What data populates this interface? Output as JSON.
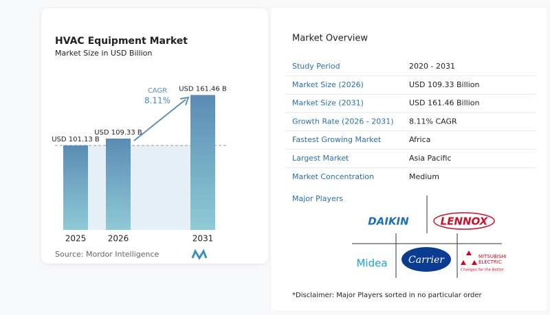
{
  "chart_data": {
    "type": "bar",
    "title": "HVAC Equipment Market",
    "subtitle": "Market Size in USD Billion",
    "categories": [
      "2025",
      "2026",
      "2031"
    ],
    "values": [
      101.13,
      109.33,
      161.46
    ],
    "value_labels": [
      "USD 101.13 B",
      "USD 109.33 B",
      "USD 161.46 B"
    ],
    "annotation": {
      "label": "CAGR",
      "value": "8.11%"
    },
    "ylim": [
      0,
      170
    ],
    "source": "Source: Mordor Intelligence"
  },
  "overview": {
    "title": "Market Overview",
    "rows": [
      [
        "Study Period",
        "2020 - 2031"
      ],
      [
        "Market Size (2026)",
        "USD 109.33 Billion"
      ],
      [
        "Market Size (2031)",
        "USD 161.46 Billion"
      ],
      [
        "Growth Rate (2026 - 2031)",
        "8.11% CAGR"
      ],
      [
        "Fastest Growing Market",
        "Africa"
      ],
      [
        "Largest Market",
        "Asia Pacific"
      ],
      [
        "Market Concentration",
        "Medium"
      ]
    ],
    "players_title": "Major Players",
    "players": [
      "DAIKIN",
      "LENNOX",
      "Midea",
      "Carrier",
      "MITSUBISHI",
      "ELECTRIC",
      "Changes for the Better"
    ],
    "disclaimer": "*Disclaimer: Major Players sorted in no particular order"
  }
}
